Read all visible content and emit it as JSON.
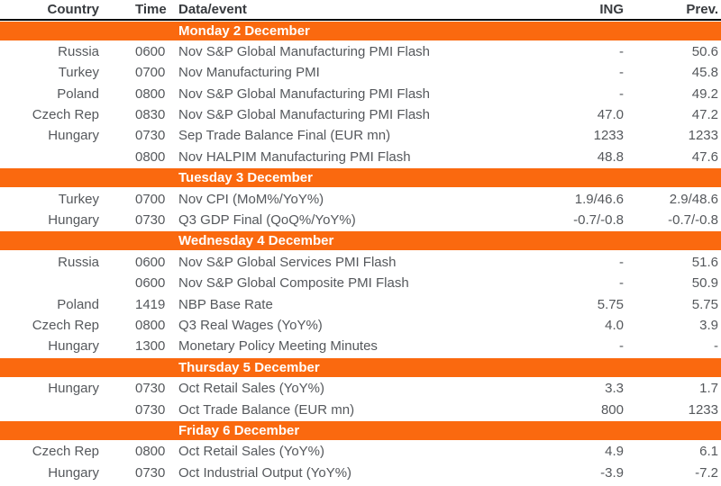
{
  "colors": {
    "accent_orange": "#FA690F",
    "body_text": "#55585C",
    "header_text": "#383B3F",
    "banner_text": "#FFFFFF",
    "header_rule": "#000000"
  },
  "table": {
    "columns": {
      "country": "Country",
      "time": "Time",
      "event": "Data/event",
      "ing": "ING",
      "prev": "Prev."
    },
    "sections": [
      {
        "label": "Monday 2 December",
        "rows": [
          {
            "country": "Russia",
            "time": "0600",
            "event": "Nov S&P Global Manufacturing PMI Flash",
            "ing": "-",
            "prev": "50.6"
          },
          {
            "country": "Turkey",
            "time": "0700",
            "event": "Nov Manufacturing PMI",
            "ing": "-",
            "prev": "45.8"
          },
          {
            "country": "Poland",
            "time": "0800",
            "event": "Nov S&P Global Manufacturing PMI Flash",
            "ing": "-",
            "prev": "49.2"
          },
          {
            "country": "Czech Rep",
            "time": "0830",
            "event": "Nov S&P Global Manufacturing PMI Flash",
            "ing": "47.0",
            "prev": "47.2"
          },
          {
            "country": "Hungary",
            "time": "0730",
            "event": "Sep Trade Balance Final (EUR mn)",
            "ing": "1233",
            "prev": "1233"
          },
          {
            "country": "",
            "time": "0800",
            "event": "Nov HALPIM Manufacturing PMI Flash",
            "ing": "48.8",
            "prev": "47.6"
          }
        ]
      },
      {
        "label": "Tuesday 3 December",
        "rows": [
          {
            "country": "Turkey",
            "time": "0700",
            "event": "Nov CPI (MoM%/YoY%)",
            "ing": "1.9/46.6",
            "prev": "2.9/48.6"
          },
          {
            "country": "Hungary",
            "time": "0730",
            "event": "Q3 GDP Final (QoQ%/YoY%)",
            "ing": "-0.7/-0.8",
            "prev": "-0.7/-0.8"
          }
        ]
      },
      {
        "label": "Wednesday 4 December",
        "rows": [
          {
            "country": "Russia",
            "time": "0600",
            "event": "Nov S&P Global Services PMI Flash",
            "ing": "-",
            "prev": "51.6"
          },
          {
            "country": "",
            "time": "0600",
            "event": "Nov S&P Global Composite PMI Flash",
            "ing": "-",
            "prev": "50.9"
          },
          {
            "country": "Poland",
            "time": "1419",
            "event": "NBP Base Rate",
            "ing": "5.75",
            "prev": "5.75"
          },
          {
            "country": "Czech Rep",
            "time": "0800",
            "event": "Q3 Real Wages (YoY%)",
            "ing": "4.0",
            "prev": "3.9"
          },
          {
            "country": "Hungary",
            "time": "1300",
            "event": "Monetary Policy Meeting Minutes",
            "ing": "-",
            "prev": "-"
          }
        ]
      },
      {
        "label": "Thursday 5 December",
        "rows": [
          {
            "country": "Hungary",
            "time": "0730",
            "event": "Oct Retail Sales (YoY%)",
            "ing": "3.3",
            "prev": "1.7"
          },
          {
            "country": "",
            "time": "0730",
            "event": "Oct Trade Balance (EUR mn)",
            "ing": "800",
            "prev": "1233"
          }
        ]
      },
      {
        "label": "Friday 6 December",
        "rows": [
          {
            "country": "Czech Rep",
            "time": "0800",
            "event": "Oct Retail Sales (YoY%)",
            "ing": "4.9",
            "prev": "6.1"
          },
          {
            "country": "Hungary",
            "time": "0730",
            "event": "Oct Industrial Output (YoY%)",
            "ing": "-3.9",
            "prev": "-7.2"
          }
        ]
      }
    ]
  }
}
